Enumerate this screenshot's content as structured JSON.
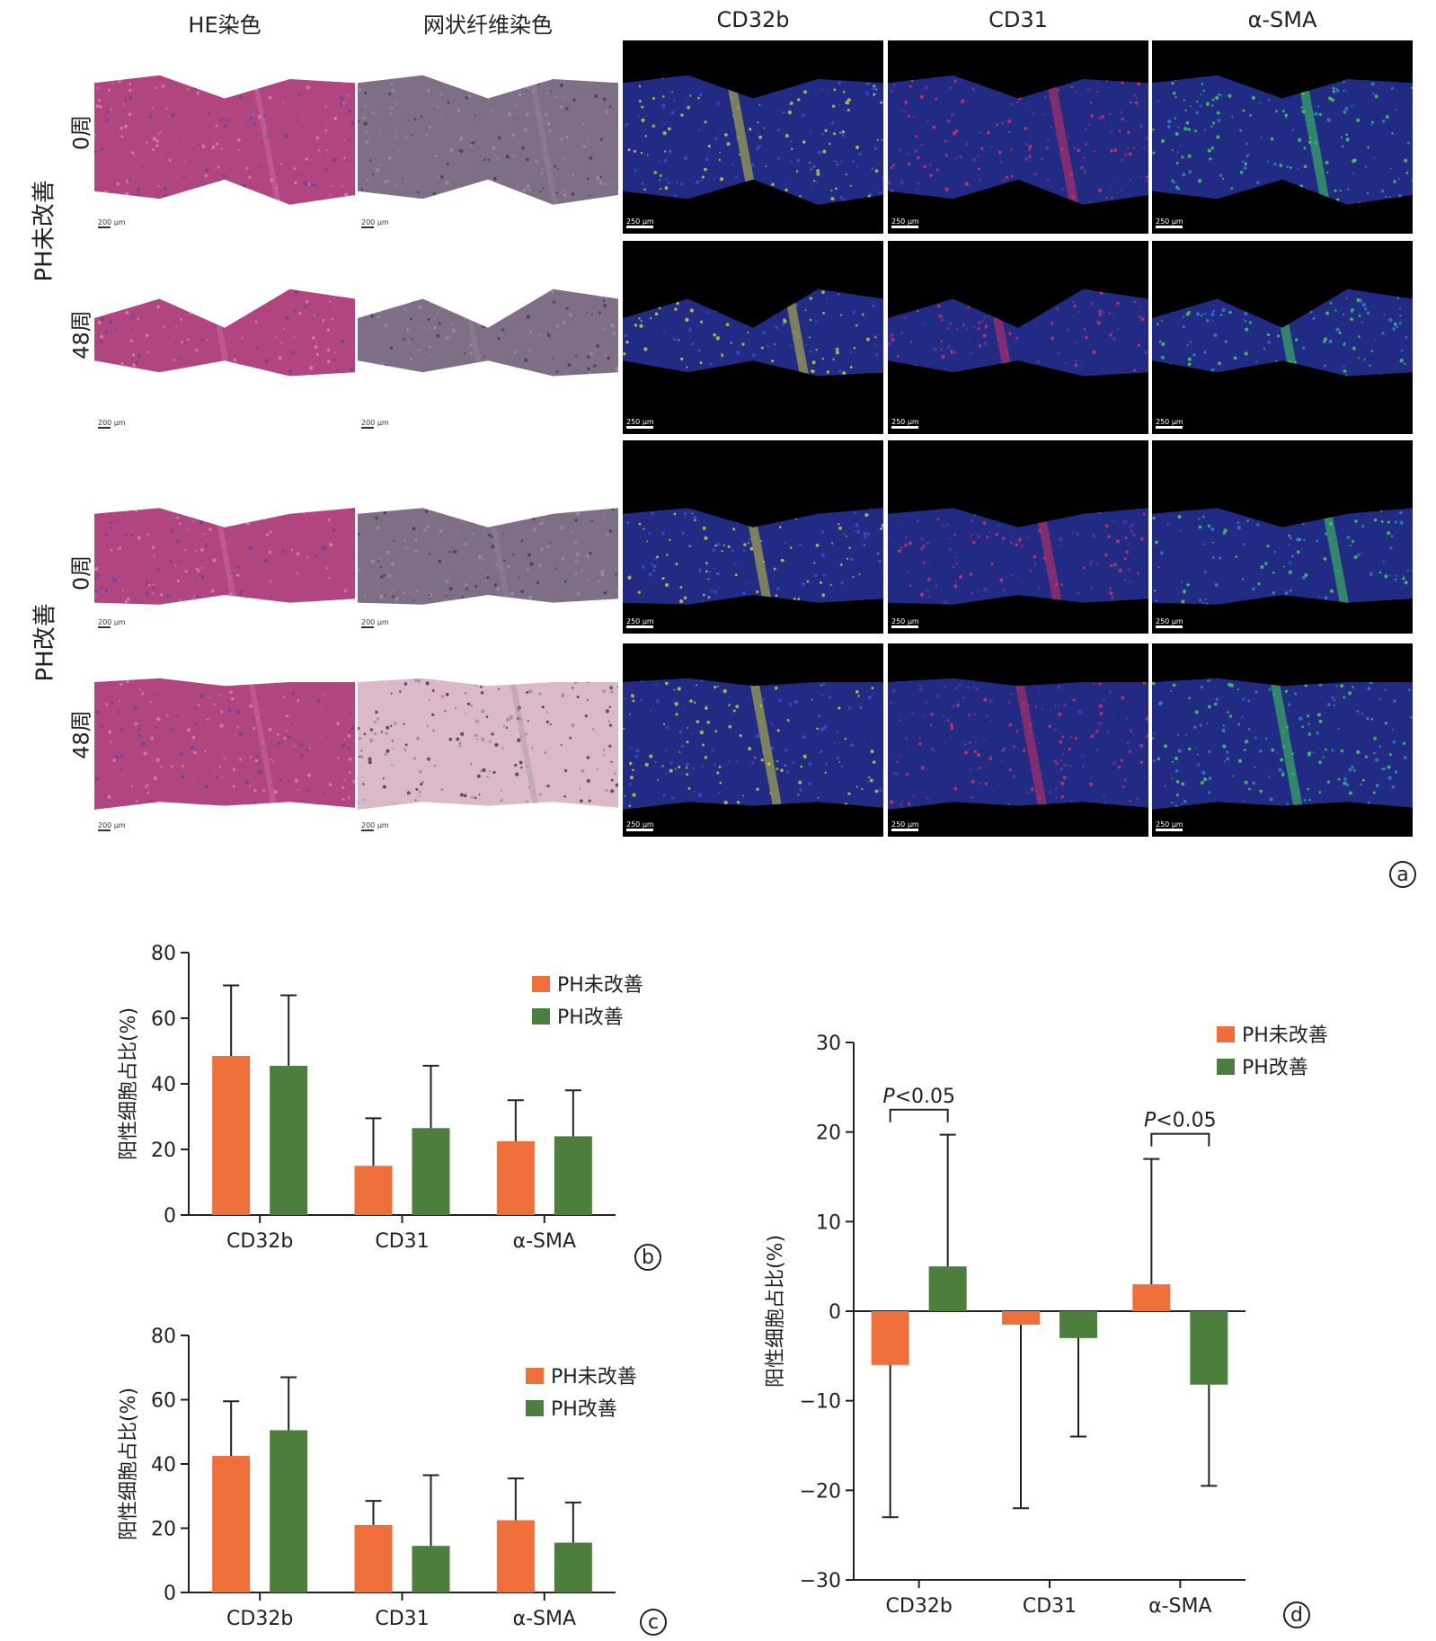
{
  "figure": {
    "column_labels": [
      "HE染色",
      "网状纤维染色",
      "CD32b",
      "CD31",
      "α-SMA"
    ],
    "groups": [
      {
        "label": "PH未改善",
        "rows": [
          "0周",
          "48周"
        ]
      },
      {
        "label": "PH改善",
        "rows": [
          "0周",
          "48周"
        ]
      }
    ],
    "scalebar_he": "200 μm",
    "scalebar_fl": "250 μm",
    "panel_letters": {
      "a": "a",
      "b": "b",
      "c": "c",
      "d": "d"
    },
    "colors": {
      "he": "#b0457f",
      "reticulin": "#7e6f86",
      "reticulin_pink": "#dcb9c8",
      "cd32b": "#c8c83a",
      "cd31": "#d03060",
      "asma": "#3fcf55",
      "nuclei": "#2c3ab0"
    }
  },
  "chart_data": [
    {
      "id": "b",
      "type": "bar",
      "categories": [
        "CD32b",
        "CD31",
        "α-SMA"
      ],
      "ylabel": "阳性细胞占比(%)",
      "ylim": [
        0,
        80
      ],
      "yticks": [
        0,
        20,
        40,
        60,
        80
      ],
      "legend": "top-right",
      "series": [
        {
          "name": "PH未改善",
          "color": "#ee6f3a",
          "values": [
            48.5,
            15,
            22.5
          ],
          "error": [
            21.5,
            14.5,
            12.5
          ]
        },
        {
          "name": "PH改善",
          "color": "#4c7e3d",
          "values": [
            45.5,
            26.5,
            24
          ],
          "error": [
            21.5,
            19,
            14
          ]
        }
      ]
    },
    {
      "id": "c",
      "type": "bar",
      "categories": [
        "CD32b",
        "CD31",
        "α-SMA"
      ],
      "ylabel": "阳性细胞占比(%)",
      "ylim": [
        0,
        80
      ],
      "yticks": [
        0,
        20,
        40,
        60,
        80
      ],
      "legend": "top-right",
      "series": [
        {
          "name": "PH未改善",
          "color": "#ee6f3a",
          "values": [
            42.5,
            21,
            22.5
          ],
          "error": [
            17,
            7.5,
            13
          ]
        },
        {
          "name": "PH改善",
          "color": "#4c7e3d",
          "values": [
            50.5,
            14.5,
            15.5
          ],
          "error": [
            16.5,
            22,
            12.5
          ]
        }
      ]
    },
    {
      "id": "d",
      "type": "bar",
      "categories": [
        "CD32b",
        "CD31",
        "α-SMA"
      ],
      "ylabel": "阳性细胞占比(%)",
      "ylim": [
        -30,
        30
      ],
      "yticks": [
        -30,
        -20,
        -10,
        0,
        10,
        20,
        30
      ],
      "legend": "top-right",
      "series": [
        {
          "name": "PH未改善",
          "color": "#ee6f3a",
          "values": [
            -6,
            -1.5,
            3
          ],
          "error": [
            17,
            20.5,
            14
          ]
        },
        {
          "name": "PH改善",
          "color": "#4c7e3d",
          "values": [
            5,
            -3,
            -8.2
          ],
          "error": [
            14.7,
            11,
            11.3
          ]
        }
      ],
      "annotations": [
        {
          "text": "P<0.05",
          "p": "P",
          "rest": "<0.05",
          "category_index": 0,
          "y": 22.5
        },
        {
          "text": "P<0.05",
          "p": "P",
          "rest": "<0.05",
          "category_index": 2,
          "y": 19.8
        }
      ]
    }
  ]
}
